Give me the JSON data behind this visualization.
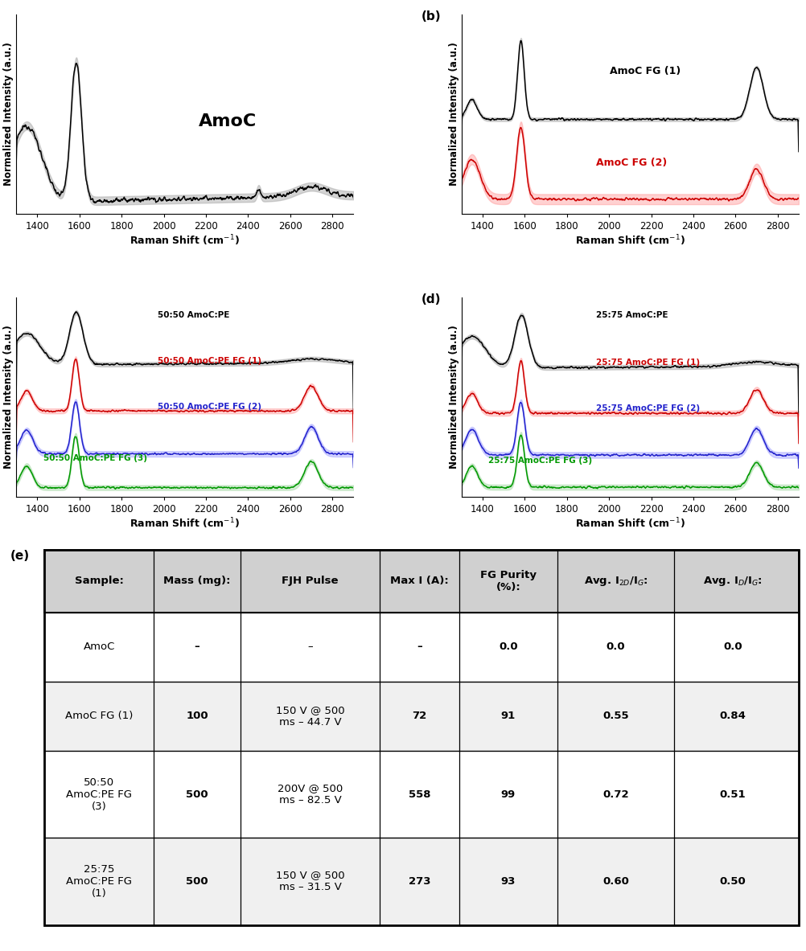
{
  "x_range": [
    1300,
    2900
  ],
  "x_ticks": [
    1400,
    1600,
    1800,
    2000,
    2200,
    2400,
    2600,
    2800
  ],
  "xlabel": "Raman Shift (cm$^{-1}$)",
  "ylabel": "Normalized Intensity (a.u.)",
  "panel_a_label": "AmoC",
  "panel_b_labels": [
    "AmoC FG (1)",
    "AmoC FG (2)"
  ],
  "panel_c_labels": [
    "50:50 AmoC:PE",
    "50:50 AmoC:PE FG (1)",
    "50:50 AmoC:PE FG (2)",
    "50:50 AmoC:PE FG (3)"
  ],
  "panel_d_labels": [
    "25:75 AmoC:PE",
    "25:75 AmoC:PE FG (1)",
    "25:75 AmoC:PE FG (2)",
    "25:75 AmoC:PE FG (3)"
  ],
  "table_headers": [
    "Sample:",
    "Mass (mg):",
    "FJH Pulse",
    "Max I (A):",
    "FG Purity\n(%):",
    "Avg. I$_{2D}$/I$_G$:",
    "Avg. I$_D$/I$_G$:"
  ],
  "table_rows": [
    [
      "AmoC",
      "–",
      "–",
      "–",
      "0.0",
      "0.0",
      "0.0"
    ],
    [
      "AmoC FG (1)",
      "100",
      "150 V @ 500\nms – 44.7 V",
      "72",
      "91",
      "0.55",
      "0.84"
    ],
    [
      "50:50\nAmoC:PE FG\n(3)",
      "500",
      "200V @ 500\nms – 82.5 V",
      "558",
      "99",
      "0.72",
      "0.51"
    ],
    [
      "25:75\nAmoC:PE FG\n(1)",
      "500",
      "150 V @ 500\nms – 31.5 V",
      "273",
      "93",
      "0.60",
      "0.50"
    ]
  ],
  "bold_cols": [
    1,
    3,
    4,
    5,
    6
  ],
  "header_bg": "#d0d0d0",
  "row_bg_odd": "#f0f0f0",
  "row_bg_even": "#ffffff"
}
